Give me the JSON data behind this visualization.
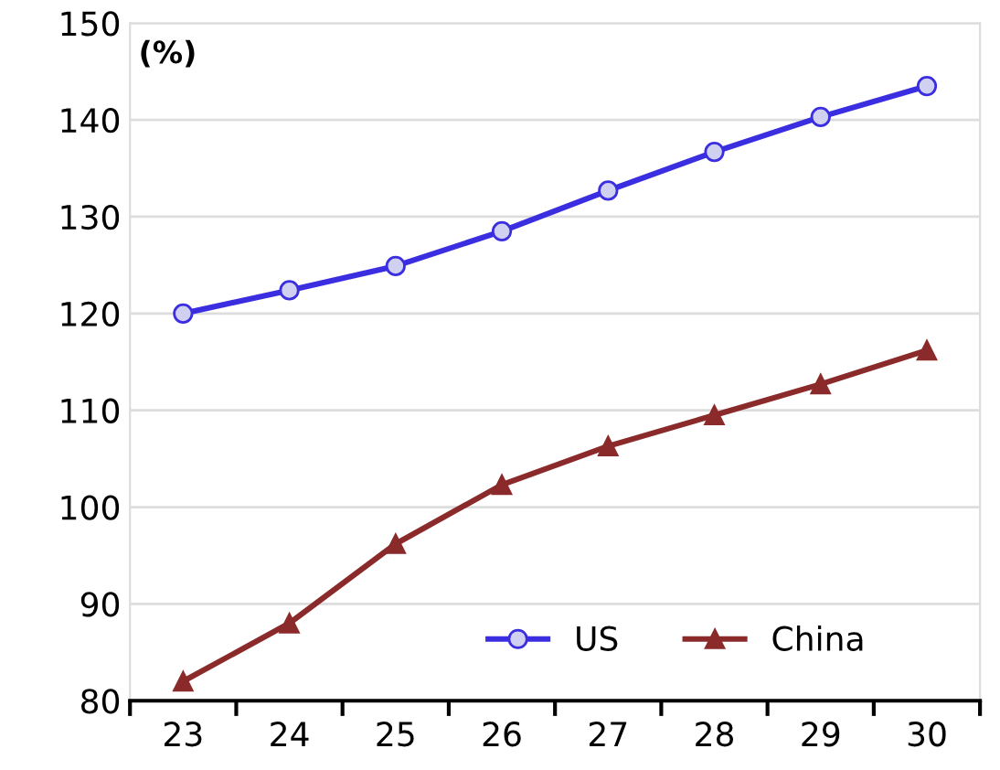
{
  "chart_data": {
    "type": "line",
    "ylabel": "(%)",
    "categories": [
      "23",
      "24",
      "25",
      "26",
      "27",
      "28",
      "29",
      "30"
    ],
    "series": [
      {
        "name": "US",
        "color": "#3b2ee0",
        "marker": "circle",
        "values": [
          120,
          122.4,
          124.9,
          128.5,
          132.7,
          136.7,
          140.3,
          143.5
        ]
      },
      {
        "name": "China",
        "color": "#8b2a2a",
        "marker": "triangle",
        "values": [
          82,
          88,
          96.2,
          102.3,
          106.3,
          109.5,
          112.7,
          116.2
        ]
      }
    ],
    "ylim": [
      80,
      150
    ],
    "yticks": [
      80,
      90,
      100,
      110,
      120,
      130,
      140,
      150
    ],
    "grid": "y",
    "legend": "bottom right",
    "line_style": "solid"
  }
}
